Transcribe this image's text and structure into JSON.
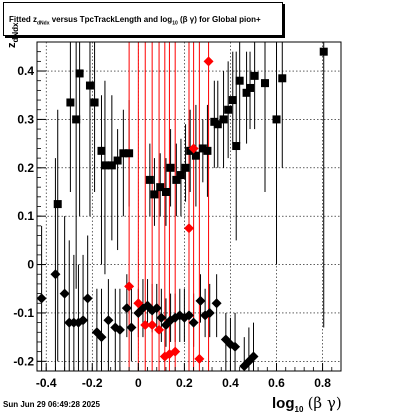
{
  "title": {
    "prefix": "Fitted  z",
    "sub": "dNdx",
    "middle": "  versus TpcTrackLength and log",
    "sub2": "10",
    "suffix": " (β  γ) for Global pion+"
  },
  "footer_text": "Sun Jun 29 06:49:28 2025",
  "ylabel": {
    "main": "z",
    "sub": "dNdx"
  },
  "xlabel": {
    "main": "log",
    "sub": "10",
    "greek": "(β γ)"
  },
  "chart_data": {
    "type": "scatter",
    "xlim": [
      -0.44,
      0.88
    ],
    "ylim": [
      -0.22,
      0.46
    ],
    "grid": true,
    "x_ticks": [
      -0.4,
      -0.2,
      0.0,
      0.2,
      0.4,
      0.6,
      0.8
    ],
    "x_tick_labels": [
      "-0.4",
      "-0.2",
      "0",
      "0.2",
      "0.4",
      "0.6",
      "0.8"
    ],
    "y_ticks": [
      -0.2,
      -0.1,
      0.0,
      0.1,
      0.2,
      0.3,
      0.4
    ],
    "y_tick_labels": [
      "-0.2",
      "-0.1",
      "0",
      "0.1",
      "0.2",
      "0.3",
      "0.4"
    ],
    "series": [
      {
        "marker": "square",
        "color": "#000000",
        "points": [
          {
            "x": -0.35,
            "y": 0.125,
            "lo": -0.2,
            "hi": 0.32
          },
          {
            "x": -0.295,
            "y": 0.335,
            "lo": 0.15,
            "hi": 0.46
          },
          {
            "x": -0.27,
            "y": 0.3,
            "lo": -0.05,
            "hi": 0.46
          },
          {
            "x": -0.255,
            "y": 0.395,
            "lo": 0.1,
            "hi": 0.46
          },
          {
            "x": -0.21,
            "y": 0.37,
            "lo": 0.1,
            "hi": 0.46
          },
          {
            "x": -0.19,
            "y": 0.335,
            "lo": 0.15,
            "hi": 0.46
          },
          {
            "x": -0.16,
            "y": 0.235,
            "lo": 0.0,
            "hi": 0.35
          },
          {
            "x": -0.145,
            "y": 0.205,
            "lo": -0.02,
            "hi": 0.38
          },
          {
            "x": -0.115,
            "y": 0.205,
            "lo": 0.05,
            "hi": 0.35
          },
          {
            "x": -0.09,
            "y": 0.215,
            "lo": 0.03,
            "hi": 0.28
          },
          {
            "x": -0.065,
            "y": 0.23,
            "lo": 0.1,
            "hi": 0.32
          },
          {
            "x": -0.04,
            "y": 0.23,
            "lo": 0.12,
            "hi": 0.34
          },
          {
            "x": 0.05,
            "y": 0.175,
            "lo": 0.1,
            "hi": 0.25
          },
          {
            "x": 0.07,
            "y": 0.145,
            "lo": 0.08,
            "hi": 0.22
          },
          {
            "x": 0.095,
            "y": 0.16,
            "lo": 0.1,
            "hi": 0.23
          },
          {
            "x": 0.12,
            "y": 0.15,
            "lo": 0.08,
            "hi": 0.22
          },
          {
            "x": 0.14,
            "y": 0.2,
            "lo": 0.12,
            "hi": 0.28
          },
          {
            "x": 0.165,
            "y": 0.175,
            "lo": 0.1,
            "hi": 0.25
          },
          {
            "x": 0.185,
            "y": 0.185,
            "lo": 0.1,
            "hi": 0.26
          },
          {
            "x": 0.205,
            "y": 0.2,
            "lo": 0.13,
            "hi": 0.29
          },
          {
            "x": 0.225,
            "y": 0.235,
            "lo": 0.15,
            "hi": 0.32
          },
          {
            "x": 0.25,
            "y": 0.225,
            "lo": 0.12,
            "hi": 0.33
          },
          {
            "x": 0.28,
            "y": 0.24,
            "lo": 0.17,
            "hi": 0.3
          },
          {
            "x": 0.3,
            "y": 0.235,
            "lo": 0.14,
            "hi": 0.33
          },
          {
            "x": 0.33,
            "y": 0.295,
            "lo": 0.2,
            "hi": 0.38
          },
          {
            "x": 0.345,
            "y": 0.29,
            "lo": 0.2,
            "hi": 0.38
          },
          {
            "x": 0.37,
            "y": 0.3,
            "lo": 0.2,
            "hi": 0.4
          },
          {
            "x": 0.39,
            "y": 0.32,
            "lo": 0.22,
            "hi": 0.42
          },
          {
            "x": 0.41,
            "y": 0.34,
            "lo": 0.25,
            "hi": 0.44
          },
          {
            "x": 0.425,
            "y": 0.245,
            "lo": 0.05,
            "hi": 0.44
          },
          {
            "x": 0.44,
            "y": 0.38,
            "lo": 0.25,
            "hi": 0.46
          },
          {
            "x": 0.47,
            "y": 0.355,
            "lo": 0.25,
            "hi": 0.44
          },
          {
            "x": 0.485,
            "y": 0.365,
            "lo": 0.28,
            "hi": 0.44
          },
          {
            "x": 0.505,
            "y": 0.39,
            "lo": 0.28,
            "hi": 0.46
          },
          {
            "x": 0.55,
            "y": 0.375,
            "lo": 0.15,
            "hi": 0.46
          },
          {
            "x": 0.6,
            "y": 0.3,
            "lo": 0.0,
            "hi": 0.46
          },
          {
            "x": 0.625,
            "y": 0.385,
            "lo": 0.2,
            "hi": 0.46
          },
          {
            "x": 0.805,
            "y": 0.44,
            "lo": -0.13,
            "hi": 0.46
          }
        ]
      },
      {
        "marker": "diamond",
        "color": "#000000",
        "points": [
          {
            "x": -0.42,
            "y": -0.07,
            "lo": -0.22,
            "hi": 0.08
          },
          {
            "x": -0.36,
            "y": -0.02,
            "lo": -0.22,
            "hi": 0.22
          },
          {
            "x": -0.32,
            "y": -0.06,
            "lo": -0.22,
            "hi": 0.1
          },
          {
            "x": -0.3,
            "y": -0.12,
            "lo": -0.22,
            "hi": 0.05
          },
          {
            "x": -0.28,
            "y": -0.12,
            "lo": -0.22,
            "hi": 0.02
          },
          {
            "x": -0.26,
            "y": -0.12,
            "lo": -0.22,
            "hi": 0.0
          },
          {
            "x": -0.24,
            "y": -0.115,
            "lo": -0.22,
            "hi": 0.02
          },
          {
            "x": -0.22,
            "y": -0.07,
            "lo": -0.22,
            "hi": 0.06
          },
          {
            "x": -0.18,
            "y": -0.14,
            "lo": -0.22,
            "hi": -0.05
          },
          {
            "x": -0.16,
            "y": -0.15,
            "lo": -0.22,
            "hi": -0.05
          },
          {
            "x": -0.13,
            "y": -0.115,
            "lo": -0.22,
            "hi": -0.03
          },
          {
            "x": -0.1,
            "y": -0.13,
            "lo": -0.22,
            "hi": -0.05
          },
          {
            "x": -0.08,
            "y": -0.135,
            "lo": -0.22,
            "hi": -0.05
          },
          {
            "x": -0.05,
            "y": -0.09,
            "lo": -0.15,
            "hi": -0.02
          },
          {
            "x": -0.03,
            "y": -0.13,
            "lo": -0.2,
            "hi": -0.05
          },
          {
            "x": 0.0,
            "y": -0.1,
            "lo": -0.15,
            "hi": -0.05
          },
          {
            "x": 0.02,
            "y": -0.09,
            "lo": -0.15,
            "hi": -0.03
          },
          {
            "x": 0.04,
            "y": -0.085,
            "lo": -0.13,
            "hi": -0.03
          },
          {
            "x": 0.06,
            "y": -0.095,
            "lo": -0.14,
            "hi": -0.04
          },
          {
            "x": 0.08,
            "y": -0.09,
            "lo": -0.14,
            "hi": -0.04
          },
          {
            "x": 0.1,
            "y": -0.11,
            "lo": -0.16,
            "hi": -0.05
          },
          {
            "x": 0.12,
            "y": -0.125,
            "lo": -0.17,
            "hi": -0.07
          },
          {
            "x": 0.14,
            "y": -0.115,
            "lo": -0.16,
            "hi": -0.06
          },
          {
            "x": 0.16,
            "y": -0.11,
            "lo": -0.16,
            "hi": -0.06
          },
          {
            "x": 0.18,
            "y": -0.105,
            "lo": -0.16,
            "hi": -0.05
          },
          {
            "x": 0.2,
            "y": -0.11,
            "lo": -0.16,
            "hi": -0.05
          },
          {
            "x": 0.22,
            "y": -0.105,
            "lo": -0.16,
            "hi": -0.05
          },
          {
            "x": 0.24,
            "y": -0.12,
            "lo": -0.17,
            "hi": -0.06
          },
          {
            "x": 0.27,
            "y": -0.075,
            "lo": -0.12,
            "hi": -0.02
          },
          {
            "x": 0.29,
            "y": -0.105,
            "lo": -0.15,
            "hi": -0.05
          },
          {
            "x": 0.31,
            "y": -0.1,
            "lo": -0.15,
            "hi": -0.04
          },
          {
            "x": 0.34,
            "y": -0.08,
            "lo": -0.15,
            "hi": -0.02
          },
          {
            "x": 0.38,
            "y": -0.155,
            "lo": -0.22,
            "hi": -0.1
          },
          {
            "x": 0.4,
            "y": -0.165,
            "lo": -0.22,
            "hi": -0.11
          },
          {
            "x": 0.42,
            "y": -0.17,
            "lo": -0.22,
            "hi": -0.1
          },
          {
            "x": 0.46,
            "y": -0.21,
            "lo": -0.22,
            "hi": -0.15
          },
          {
            "x": 0.48,
            "y": -0.2,
            "lo": -0.22,
            "hi": -0.13
          },
          {
            "x": 0.5,
            "y": -0.19,
            "lo": -0.22,
            "hi": -0.12
          }
        ]
      },
      {
        "marker": "diamond",
        "color": "#ff0000",
        "points": [
          {
            "x": -0.04,
            "y": -0.045,
            "lo": -0.22,
            "hi": 0.46
          },
          {
            "x": 0.0,
            "y": -0.08,
            "lo": -0.22,
            "hi": 0.46
          },
          {
            "x": 0.03,
            "y": -0.125,
            "lo": -0.22,
            "hi": 0.46
          },
          {
            "x": 0.06,
            "y": -0.125,
            "lo": -0.22,
            "hi": 0.46
          },
          {
            "x": 0.09,
            "y": -0.135,
            "lo": -0.22,
            "hi": 0.46
          },
          {
            "x": 0.115,
            "y": -0.19,
            "lo": -0.22,
            "hi": 0.46
          },
          {
            "x": 0.135,
            "y": -0.185,
            "lo": -0.22,
            "hi": 0.46
          },
          {
            "x": 0.16,
            "y": -0.18,
            "lo": -0.22,
            "hi": 0.46
          },
          {
            "x": 0.22,
            "y": 0.075,
            "lo": -0.22,
            "hi": 0.46
          },
          {
            "x": 0.24,
            "y": 0.24,
            "lo": -0.22,
            "hi": 0.46
          },
          {
            "x": 0.265,
            "y": -0.195,
            "lo": -0.22,
            "hi": 0.46
          },
          {
            "x": 0.305,
            "y": 0.42,
            "lo": -0.22,
            "hi": 0.46
          }
        ]
      }
    ]
  }
}
